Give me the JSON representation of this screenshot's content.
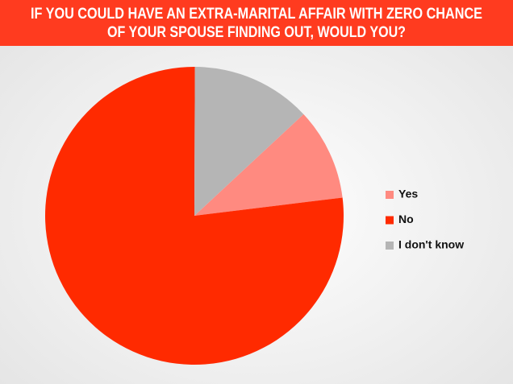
{
  "chart_data": {
    "type": "pie",
    "title": [
      "IF YOU COULD HAVE AN EXTRA-MARITAL AFFAIR WITH ZERO CHANCE",
      "OF YOUR SPOUSE FINDING OUT, WOULD YOU?"
    ],
    "categories": [
      "Yes",
      "No",
      "I don't know"
    ],
    "values": [
      10,
      77,
      13
    ],
    "colors": [
      "#ff8a80",
      "#ff2a00",
      "#b5b5b5"
    ],
    "legend": "right"
  }
}
